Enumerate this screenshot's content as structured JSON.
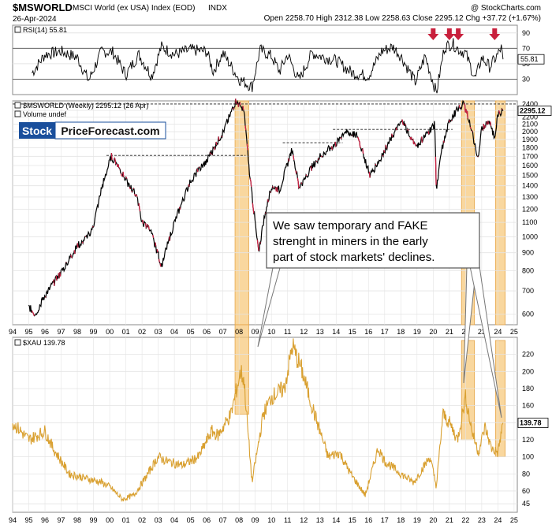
{
  "header": {
    "symbol": "$MSWORLD",
    "name": "MSCI World (ex USA) Index (EOD)",
    "exchange": "INDX",
    "date": "26-Apr-2024",
    "source": "@ StockCharts.com",
    "ohlc": "Open 2258.70  High 2312.38  Low 2258.63  Close 2295.12  Chg +37.72 (+1.67%)"
  },
  "logo": {
    "part1": "Stock",
    "part2": "PriceForecast.com"
  },
  "annotation": {
    "lines": [
      "We saw temporary and FAKE",
      "strenght in miners in the early",
      "part of stock markets' declines."
    ]
  },
  "colors": {
    "line": "#000000",
    "xau": "#d9a030",
    "highlight": "#f7c97e",
    "down_bar": "#cc2244",
    "arrow": "#c8203c",
    "grid": "#e4e4e4",
    "callout_bg": "#ffffff",
    "callout_border": "#555555"
  },
  "chart_data": [
    {
      "type": "line",
      "panel": "rsi",
      "title": "RSI(14) 55.81",
      "last_value": "55.81",
      "y_ticks": [
        30,
        50,
        70,
        90
      ],
      "ylim": [
        10,
        100
      ],
      "levels": [
        30,
        70
      ],
      "series": [
        {
          "name": "RSI(14)",
          "x": [
            1995.2,
            1996,
            1997,
            1998,
            1998.7,
            1999.5,
            2000.2,
            2001,
            2001.8,
            2002.6,
            2003.2,
            2004,
            2005,
            2006,
            2006.4,
            2007,
            2008,
            2008.8,
            2009.3,
            2010,
            2010.5,
            2011,
            2011.7,
            2012.5,
            2013,
            2014,
            2015,
            2016,
            2016.8,
            2017.5,
            2018,
            2018.9,
            2019.5,
            2020.2,
            2020.7,
            2021.2,
            2021.6,
            2022,
            2022.6,
            2023,
            2023.5,
            2024,
            2024.2,
            2024.32
          ],
          "y": [
            38,
            62,
            66,
            58,
            28,
            66,
            65,
            36,
            62,
            34,
            72,
            62,
            68,
            66,
            40,
            64,
            30,
            20,
            68,
            60,
            40,
            62,
            28,
            64,
            60,
            54,
            38,
            34,
            66,
            72,
            60,
            26,
            60,
            12,
            72,
            76,
            68,
            64,
            30,
            58,
            46,
            62,
            71,
            55.81
          ]
        }
      ],
      "arrows_x": [
        2020.0,
        2021.0,
        2021.55,
        2023.8
      ]
    },
    {
      "type": "line",
      "panel": "price",
      "title": "$MSWORLD (Weekly) 2295.12 (26 Apr)",
      "subtitle": "Volume undef",
      "last_value": "2295.12",
      "y_scale": "log",
      "y_ticks": [
        600,
        700,
        800,
        900,
        1000,
        1100,
        1200,
        1300,
        1400,
        1500,
        1600,
        1700,
        1800,
        1900,
        2000,
        2100,
        2200,
        2300,
        2400
      ],
      "ylim": [
        560,
        2450
      ],
      "x_ticks": [
        "94",
        "95",
        "96",
        "97",
        "98",
        "99",
        "00",
        "01",
        "02",
        "03",
        "04",
        "05",
        "06",
        "07",
        "08",
        "09",
        "10",
        "11",
        "12",
        "13",
        "14",
        "15",
        "16",
        "17",
        "18",
        "19",
        "20",
        "21",
        "22",
        "23",
        "24",
        "25"
      ],
      "xlim": [
        1994,
        2025.2
      ],
      "highlights": [
        [
          2007.75,
          2008.6
        ],
        [
          2021.75,
          2022.55
        ],
        [
          2023.85,
          2024.45
        ]
      ],
      "dashed_levels": [
        {
          "y": 2400,
          "x_from": 1994,
          "x_to": 2025.2
        },
        {
          "y": 1710,
          "x_from": 1999.8,
          "x_to": 2008.4
        },
        {
          "y": 1860,
          "x_from": 2010.7,
          "x_to": 2014.4
        },
        {
          "y": 2030,
          "x_from": 2013.8,
          "x_to": 2021.2
        }
      ],
      "series": [
        {
          "name": "$MSWORLD",
          "x": [
            1995.0,
            1995.4,
            1996,
            1997,
            1998,
            1998.7,
            1999,
            1999.5,
            2000.1,
            2000.5,
            2001,
            2001.7,
            2002,
            2002.5,
            2003.2,
            2004,
            2005,
            2006,
            2007,
            2007.8,
            2008.3,
            2008.6,
            2009.2,
            2009.5,
            2010,
            2010.5,
            2011.3,
            2011.7,
            2012.4,
            2013,
            2014,
            2014.5,
            2015.3,
            2016.1,
            2016.8,
            2017.5,
            2018.1,
            2018.9,
            2019.5,
            2020.1,
            2020.2,
            2020.5,
            2021,
            2021.6,
            2021.9,
            2022.3,
            2022.8,
            2023,
            2023.5,
            2023.8,
            2024,
            2024.32
          ],
          "y": [
            630,
            600,
            680,
            790,
            940,
            1010,
            1080,
            1380,
            1700,
            1600,
            1450,
            1300,
            1100,
            1050,
            830,
            1100,
            1450,
            1650,
            1990,
            2450,
            2300,
            1600,
            900,
            1100,
            1400,
            1360,
            1800,
            1380,
            1560,
            1700,
            1850,
            2000,
            1950,
            1500,
            1700,
            1950,
            2150,
            1800,
            1950,
            2100,
            1350,
            1750,
            2150,
            2350,
            2400,
            2100,
            1650,
            2050,
            2150,
            1900,
            2250,
            2295.12
          ]
        }
      ]
    },
    {
      "type": "line",
      "panel": "xau",
      "title": "$XAU 139.78",
      "last_value": "139.78",
      "y_ticks": [
        45,
        60,
        80,
        100,
        120,
        140,
        160,
        180,
        200,
        220
      ],
      "ylim": [
        35,
        240
      ],
      "x_ticks": [
        "94",
        "95",
        "96",
        "97",
        "98",
        "99",
        "00",
        "01",
        "02",
        "03",
        "04",
        "05",
        "06",
        "07",
        "08",
        "09",
        "10",
        "11",
        "12",
        "13",
        "14",
        "15",
        "16",
        "17",
        "18",
        "19",
        "20",
        "21",
        "22",
        "23",
        "24",
        "25"
      ],
      "xlim": [
        1994,
        2025.2
      ],
      "highlights": [
        [
          2007.75,
          2008.6
        ],
        [
          2021.75,
          2022.55
        ],
        [
          2023.85,
          2024.45
        ]
      ],
      "series": [
        {
          "name": "$XAU",
          "x": [
            1994,
            1995,
            1996,
            1996.5,
            1997.5,
            1998.5,
            1999.5,
            2000,
            2000.8,
            2001.5,
            2002.2,
            2003,
            2003.5,
            2004.5,
            2005.5,
            2006.3,
            2006.7,
            2007.5,
            2008.1,
            2008.3,
            2008.8,
            2009.5,
            2010,
            2010.8,
            2011.3,
            2011.9,
            2012.5,
            2013.5,
            2014.2,
            2014.9,
            2015.8,
            2016.6,
            2017,
            2018,
            2018.8,
            2019.8,
            2020.2,
            2020.6,
            2021,
            2021.5,
            2022,
            2022.4,
            2022.8,
            2023.2,
            2023.6,
            2024,
            2024.32
          ],
          "y": [
            140,
            120,
            130,
            110,
            80,
            75,
            70,
            65,
            50,
            55,
            75,
            100,
            95,
            90,
            100,
            130,
            125,
            150,
            200,
            190,
            70,
            150,
            170,
            180,
            230,
            200,
            160,
            100,
            105,
            80,
            55,
            110,
            95,
            80,
            70,
            100,
            65,
            150,
            140,
            120,
            170,
            130,
            105,
            135,
            110,
            105,
            139.78
          ]
        }
      ]
    }
  ]
}
